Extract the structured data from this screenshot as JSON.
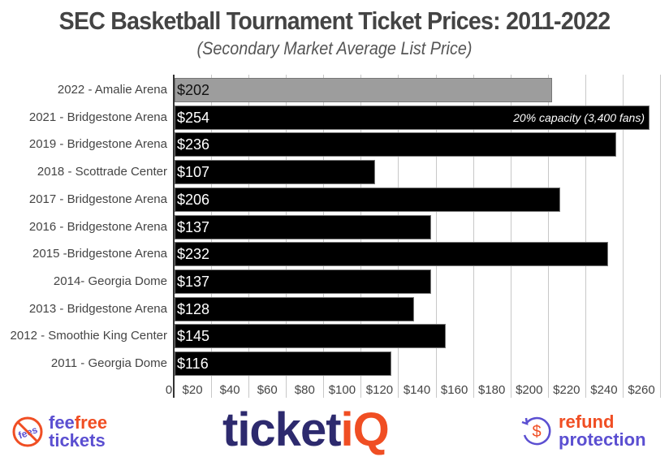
{
  "chart_data": {
    "type": "bar",
    "orientation": "horizontal",
    "title": "SEC Basketball Tournament Ticket Prices: 2011-2022",
    "subtitle": "(Secondary Market Average List Price)",
    "categories": [
      "2022 - Amalie Arena",
      "2021 - Bridgestone Arena",
      "2019 - Bridgestone Arena",
      "2018 - Scottrade Center",
      "2017 - Bridgestone Arena",
      "2016 - Bridgestone Arena",
      "2015 -Bridgestone Arena",
      "2014- Georgia Dome",
      "2013 - Bridgestone Arena",
      "2012 - Smoothie King Center",
      "2011 - Georgia Dome"
    ],
    "values": [
      202,
      254,
      236,
      107,
      206,
      137,
      232,
      137,
      128,
      145,
      116
    ],
    "value_labels": [
      "$202",
      "$254",
      "$236",
      "$107",
      "$206",
      "$137",
      "$232",
      "$137",
      "$128",
      "$145",
      "$116"
    ],
    "highlight_index": 0,
    "annotations": [
      {
        "category": "2021 - Bridgestone Arena",
        "text": "20% capacity (3,400 fans)"
      }
    ],
    "xlabel": "",
    "ylabel": "",
    "xlim": [
      0,
      260
    ],
    "x_ticks": [
      "0",
      "$20",
      "$40",
      "$60",
      "$80",
      "$100",
      "$120",
      "$140",
      "$160",
      "$180",
      "$200",
      "$220",
      "$240",
      "$260"
    ],
    "grid": true,
    "legend": null,
    "colors": {
      "bar": "#000000",
      "highlight_bar": "#9d9d9d",
      "grid": "#c8c8c8"
    }
  },
  "footer": {
    "feefree": {
      "badge": "fees",
      "word1": "fee",
      "word2": "free",
      "word3": "tickets"
    },
    "ticketiq": {
      "main": "ticket",
      "accent": "iQ"
    },
    "refund": {
      "symbol": "$",
      "line1": "refund",
      "line2": "protection"
    },
    "colors": {
      "purple": "#5b4fd1",
      "navy": "#2d2a6e",
      "orange": "#f04e23"
    }
  }
}
